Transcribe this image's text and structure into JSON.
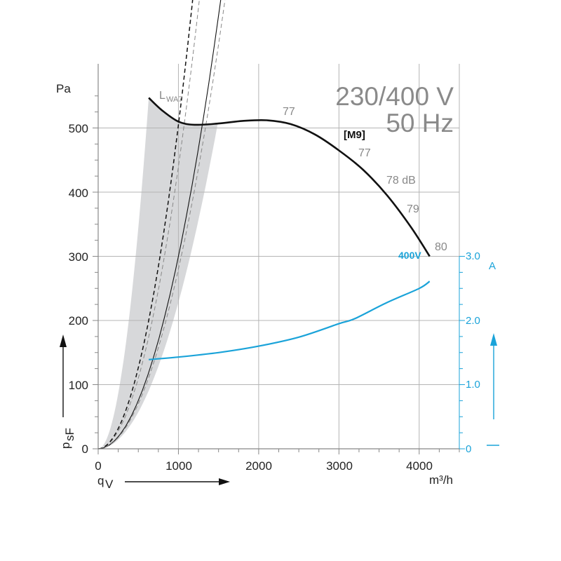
{
  "chart_data": {
    "type": "line",
    "title_line1": "230/400 V",
    "title_line2": "50 Hz",
    "model_label": "[M9]",
    "xlabel": "q",
    "xlabel_sub": "V",
    "xunit": "m³/h",
    "ylabel": "p",
    "ylabel_sub": "sF",
    "yunit": "Pa",
    "y2unit": "A",
    "xlim": [
      0,
      4500
    ],
    "ylim": [
      0,
      600
    ],
    "y2lim": [
      0,
      3.0
    ],
    "xticks": [
      "0",
      "1000",
      "2000",
      "3000",
      "4000"
    ],
    "yticks": [
      "0",
      "100",
      "200",
      "300",
      "400",
      "500"
    ],
    "y2ticks": [
      "0",
      "1.0",
      "2.0",
      "3.0"
    ],
    "grid": true,
    "series": [
      {
        "name": "[M9]",
        "kind": "fan-curve",
        "color": "#111111",
        "x": [
          630,
          800,
          1000,
          1200,
          1500,
          1800,
          2100,
          2400,
          2700,
          3000,
          3300,
          3600,
          3900,
          4130
        ],
        "y": [
          547,
          527,
          510,
          505,
          507,
          511,
          512,
          506,
          490,
          465,
          435,
          395,
          345,
          300
        ]
      },
      {
        "name": "400V",
        "kind": "current",
        "color": "#1aa3d9",
        "x": [
          630,
          1000,
          1500,
          2000,
          2500,
          3000,
          3200,
          3600,
          4000,
          4130
        ],
        "y": [
          1.39,
          1.43,
          1.5,
          1.6,
          1.74,
          1.95,
          2.03,
          2.28,
          2.5,
          2.61
        ]
      }
    ],
    "system_curves": [
      {
        "k": 300,
        "style": "solid",
        "q_max": 4130
      },
      {
        "k": 280,
        "style": "dashed",
        "q_max": 3590
      },
      {
        "k": 440,
        "style": "dashed",
        "q_max": 2850
      },
      {
        "k": 505,
        "style": "dashed",
        "q_max": 1490,
        "color": "#111111"
      }
    ],
    "shaded_region": {
      "top_x": [
        630,
        1490
      ],
      "top_y": [
        547,
        507
      ]
    },
    "annotations": {
      "lwa_label": "L",
      "lwa_sub": "WA7",
      "sound_levels": [
        "77",
        "77",
        "78 dB",
        "79",
        "80"
      ],
      "current_label": "400V"
    },
    "colors": {
      "accent": "#1aa3d9",
      "grid": "#b4b4b4",
      "shade": "#d7d8da"
    }
  }
}
